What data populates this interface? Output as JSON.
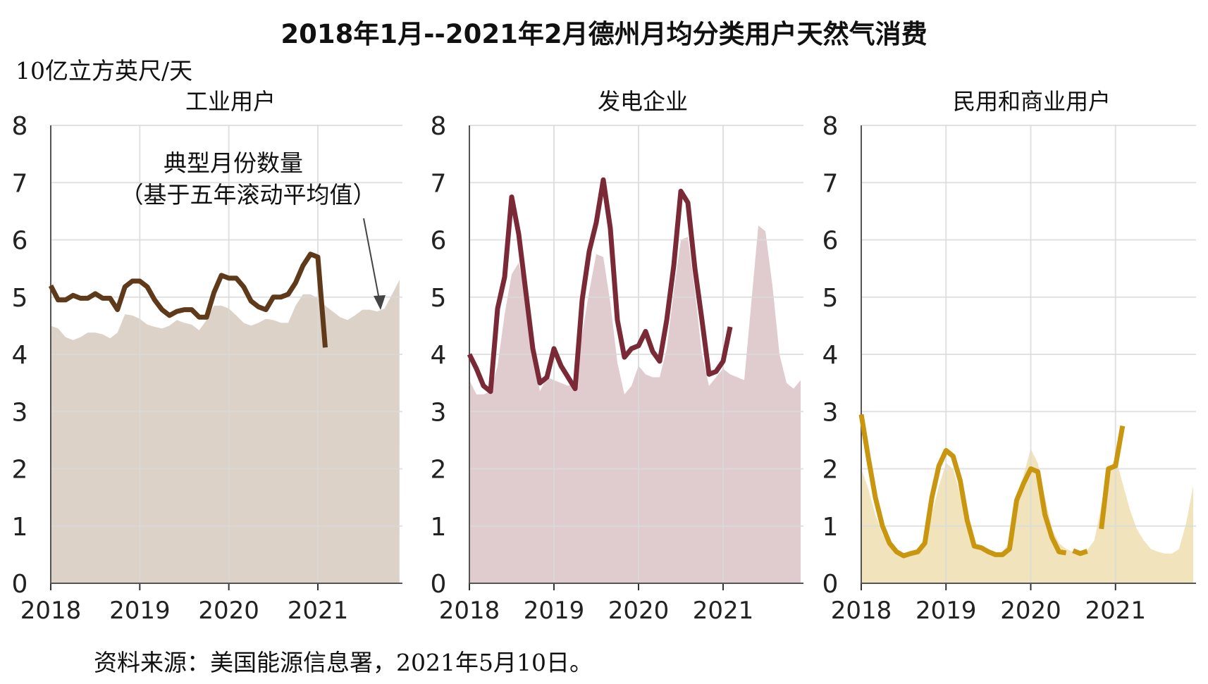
{
  "title": "2018年1月--2021年2月德州月均分类用户天然气消费",
  "unit_label": "10亿立方英尺/天",
  "source": "资料来源：美国能源信息署，2021年5月10日。",
  "chart_data": [
    {
      "type": "line",
      "title": "工业用户",
      "ylim": [
        0,
        8
      ],
      "yticks": [
        "0",
        "1",
        "2",
        "3",
        "4",
        "5",
        "6",
        "7",
        "8"
      ],
      "xticks": [
        "2018",
        "2019",
        "2020",
        "2021"
      ],
      "xlim": [
        2018.0,
        2021.95
      ],
      "grid": true,
      "colors": {
        "line": "#5e3a1a",
        "area": "#dcd2c8"
      },
      "annotation": {
        "line1": "典型月份数量",
        "line2": "（基于五年滚动平均值）"
      },
      "series": [
        {
          "role": "actual",
          "x": [
            2018.0,
            2018.0833,
            2018.1667,
            2018.25,
            2018.3333,
            2018.4167,
            2018.5,
            2018.5833,
            2018.6667,
            2018.75,
            2018.8333,
            2018.9167,
            2019.0,
            2019.0833,
            2019.1667,
            2019.25,
            2019.3333,
            2019.4167,
            2019.5,
            2019.5833,
            2019.6667,
            2019.75,
            2019.8333,
            2019.9167,
            2020.0,
            2020.0833,
            2020.1667,
            2020.25,
            2020.3333,
            2020.4167,
            2020.5,
            2020.5833,
            2020.6667,
            2020.75,
            2020.8333,
            2020.9167,
            2021.0,
            2021.0833
          ],
          "values": [
            5.2,
            4.95,
            4.95,
            5.03,
            4.98,
            4.98,
            5.06,
            4.98,
            4.98,
            4.78,
            5.18,
            5.28,
            5.28,
            5.18,
            4.95,
            4.78,
            4.68,
            4.75,
            4.78,
            4.78,
            4.65,
            4.65,
            5.08,
            5.38,
            5.33,
            5.33,
            5.18,
            4.93,
            4.83,
            4.78,
            5.0,
            5.0,
            5.05,
            5.25,
            5.55,
            5.75,
            5.7,
            4.12
          ]
        },
        {
          "role": "typical",
          "x": [
            2018.0,
            2018.0833,
            2018.1667,
            2018.25,
            2018.3333,
            2018.4167,
            2018.5,
            2018.5833,
            2018.6667,
            2018.75,
            2018.8333,
            2018.9167,
            2019.0,
            2019.0833,
            2019.1667,
            2019.25,
            2019.3333,
            2019.4167,
            2019.5,
            2019.5833,
            2019.6667,
            2019.75,
            2019.8333,
            2019.9167,
            2020.0,
            2020.0833,
            2020.1667,
            2020.25,
            2020.3333,
            2020.4167,
            2020.5,
            2020.5833,
            2020.6667,
            2020.75,
            2020.8333,
            2020.9167,
            2021.0,
            2021.0833,
            2021.1667,
            2021.25,
            2021.3333,
            2021.4167,
            2021.5,
            2021.5833,
            2021.6667,
            2021.75,
            2021.8333,
            2021.9167
          ],
          "values": [
            4.5,
            4.45,
            4.3,
            4.25,
            4.3,
            4.38,
            4.38,
            4.35,
            4.28,
            4.38,
            4.7,
            4.68,
            4.62,
            4.52,
            4.48,
            4.45,
            4.5,
            4.6,
            4.55,
            4.52,
            4.42,
            4.6,
            4.85,
            4.85,
            4.8,
            4.68,
            4.55,
            4.5,
            4.55,
            4.62,
            4.6,
            4.55,
            4.55,
            4.85,
            5.05,
            5.05,
            4.98,
            4.85,
            4.75,
            4.65,
            4.6,
            4.68,
            4.78,
            4.78,
            4.75,
            4.8,
            5.05,
            5.3
          ]
        }
      ]
    },
    {
      "type": "line",
      "title": "发电企业",
      "ylim": [
        0,
        8
      ],
      "yticks": [
        "0",
        "1",
        "2",
        "3",
        "4",
        "5",
        "6",
        "7",
        "8"
      ],
      "xticks": [
        "2018",
        "2019",
        "2020",
        "2021"
      ],
      "xlim": [
        2018.0,
        2021.95
      ],
      "grid": true,
      "colors": {
        "line": "#7a2a36",
        "area": "#e0cccf"
      },
      "series": [
        {
          "role": "actual",
          "x": [
            2018.0,
            2018.0833,
            2018.1667,
            2018.25,
            2018.3333,
            2018.4167,
            2018.5,
            2018.5833,
            2018.6667,
            2018.75,
            2018.8333,
            2018.9167,
            2019.0,
            2019.0833,
            2019.1667,
            2019.25,
            2019.3333,
            2019.4167,
            2019.5,
            2019.5833,
            2019.6667,
            2019.75,
            2019.8333,
            2019.9167,
            2020.0,
            2020.0833,
            2020.1667,
            2020.25,
            2020.3333,
            2020.4167,
            2020.5,
            2020.5833,
            2020.6667,
            2020.75,
            2020.8333,
            2020.9167,
            2021.0,
            2021.0833
          ],
          "values": [
            4.0,
            3.75,
            3.45,
            3.35,
            4.8,
            5.35,
            6.75,
            6.1,
            5.1,
            4.1,
            3.5,
            3.6,
            4.1,
            3.8,
            3.6,
            3.4,
            4.95,
            5.8,
            6.3,
            7.05,
            6.2,
            4.6,
            3.95,
            4.1,
            4.15,
            4.4,
            4.05,
            3.88,
            4.6,
            5.55,
            6.85,
            6.65,
            5.5,
            4.6,
            3.65,
            3.7,
            3.88,
            4.48
          ]
        },
        {
          "role": "typical",
          "x": [
            2018.0,
            2018.0833,
            2018.1667,
            2018.25,
            2018.3333,
            2018.4167,
            2018.5,
            2018.5833,
            2018.6667,
            2018.75,
            2018.8333,
            2018.9167,
            2019.0,
            2019.0833,
            2019.1667,
            2019.25,
            2019.3333,
            2019.4167,
            2019.5,
            2019.5833,
            2019.6667,
            2019.75,
            2019.8333,
            2019.9167,
            2020.0,
            2020.0833,
            2020.1667,
            2020.25,
            2020.3333,
            2020.4167,
            2020.5,
            2020.5833,
            2020.6667,
            2020.75,
            2020.8333,
            2020.9167,
            2021.0,
            2021.0833,
            2021.1667,
            2021.25,
            2021.3333,
            2021.4167,
            2021.5,
            2021.5833,
            2021.6667,
            2021.75,
            2021.8333,
            2021.9167
          ],
          "values": [
            3.55,
            3.3,
            3.3,
            3.35,
            3.8,
            4.7,
            5.4,
            5.6,
            5.0,
            4.1,
            3.35,
            3.6,
            3.55,
            3.5,
            3.45,
            3.5,
            4.35,
            5.1,
            5.75,
            5.7,
            4.9,
            3.85,
            3.3,
            3.45,
            3.8,
            3.65,
            3.6,
            3.6,
            4.1,
            5.1,
            6.0,
            6.05,
            5.1,
            4.0,
            3.45,
            3.6,
            3.75,
            3.65,
            3.6,
            3.55,
            4.9,
            6.25,
            6.15,
            5.2,
            4.0,
            3.5,
            3.4,
            3.55
          ]
        }
      ]
    },
    {
      "type": "line",
      "title": "民用和商业用户",
      "ylim": [
        0,
        8
      ],
      "yticks": [
        "0",
        "1",
        "2",
        "3",
        "4",
        "5",
        "6",
        "7",
        "8"
      ],
      "xticks": [
        "2018",
        "2019",
        "2020",
        "2021"
      ],
      "xlim": [
        2018.0,
        2021.95
      ],
      "grid": true,
      "colors": {
        "line": "#c9960f",
        "area": "#f1e3bb"
      },
      "series": [
        {
          "role": "actual",
          "segments": [
            {
              "x": [
                2018.0,
                2018.0833,
                2018.1667,
                2018.25,
                2018.3333,
                2018.4167,
                2018.5,
                2018.5833,
                2018.6667,
                2018.75,
                2018.8333,
                2018.9167,
                2019.0,
                2019.0833,
                2019.1667,
                2019.25,
                2019.3333,
                2019.4167,
                2019.5,
                2019.5833,
                2019.6667,
                2019.75,
                2019.8333,
                2019.9167,
                2020.0,
                2020.0833,
                2020.1667,
                2020.25,
                2020.3333,
                2020.4167
              ],
              "values": [
                2.95,
                2.2,
                1.5,
                1.0,
                0.7,
                0.55,
                0.48,
                0.52,
                0.55,
                0.7,
                1.5,
                2.05,
                2.32,
                2.22,
                1.8,
                1.1,
                0.65,
                0.62,
                0.55,
                0.5,
                0.5,
                0.6,
                1.45,
                1.75,
                2.0,
                1.95,
                1.2,
                0.8,
                0.55,
                0.53
              ]
            },
            {
              "x": [
                2020.5,
                2020.5833,
                2020.6667
              ],
              "values": [
                0.57,
                0.52,
                0.56
              ]
            },
            {
              "x": [
                2020.8333,
                2020.9167,
                2021.0,
                2021.0833
              ],
              "values": [
                0.95,
                2.0,
                2.05,
                2.75
              ]
            }
          ]
        },
        {
          "role": "typical",
          "x": [
            2018.0,
            2018.0833,
            2018.1667,
            2018.25,
            2018.3333,
            2018.4167,
            2018.5,
            2018.5833,
            2018.6667,
            2018.75,
            2018.8333,
            2018.9167,
            2019.0,
            2019.0833,
            2019.1667,
            2019.25,
            2019.3333,
            2019.4167,
            2019.5,
            2019.5833,
            2019.6667,
            2019.75,
            2019.8333,
            2019.9167,
            2020.0,
            2020.0833,
            2020.1667,
            2020.25,
            2020.3333,
            2020.4167,
            2020.5,
            2020.5833,
            2020.6667,
            2020.75,
            2020.8333,
            2020.9167,
            2021.0,
            2021.0833,
            2021.1667,
            2021.25,
            2021.3333,
            2021.4167,
            2021.5,
            2021.5833,
            2021.6667,
            2021.75,
            2021.8333,
            2021.9167
          ],
          "values": [
            2.0,
            1.65,
            1.2,
            0.85,
            0.7,
            0.58,
            0.52,
            0.52,
            0.55,
            0.7,
            1.2,
            1.7,
            2.1,
            2.0,
            1.55,
            1.0,
            0.72,
            0.6,
            0.55,
            0.52,
            0.55,
            0.72,
            1.35,
            1.9,
            2.35,
            2.1,
            1.5,
            0.95,
            0.7,
            0.6,
            0.55,
            0.55,
            0.58,
            0.75,
            1.35,
            1.95,
            2.2,
            1.75,
            1.3,
            0.95,
            0.75,
            0.6,
            0.55,
            0.52,
            0.52,
            0.6,
            1.05,
            1.7
          ]
        }
      ]
    }
  ]
}
